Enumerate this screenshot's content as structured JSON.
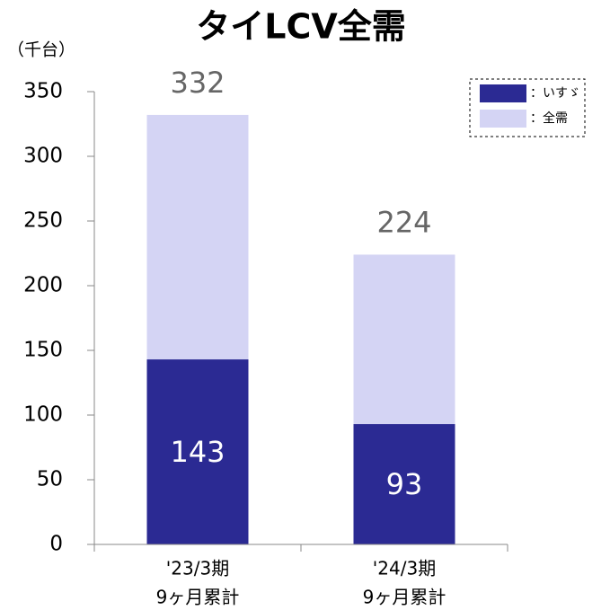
{
  "chart_data": {
    "type": "bar",
    "title": "タイLCV全需",
    "y_axis_label": "（千台）",
    "categories": [
      [
        "'23/3期",
        "9ヶ月累計"
      ],
      [
        "'24/3期",
        "9ヶ月累計"
      ]
    ],
    "series": [
      {
        "name": "：全需",
        "color": "#d4d4f4",
        "values": [
          332,
          224
        ]
      },
      {
        "name": "：いすゞ",
        "color": "#2b2a93",
        "values": [
          143,
          93
        ]
      }
    ],
    "ylim": [
      0,
      350
    ],
    "yticks": [
      0,
      50,
      100,
      150,
      200,
      250,
      300,
      350
    ],
    "legend": "top-right"
  }
}
